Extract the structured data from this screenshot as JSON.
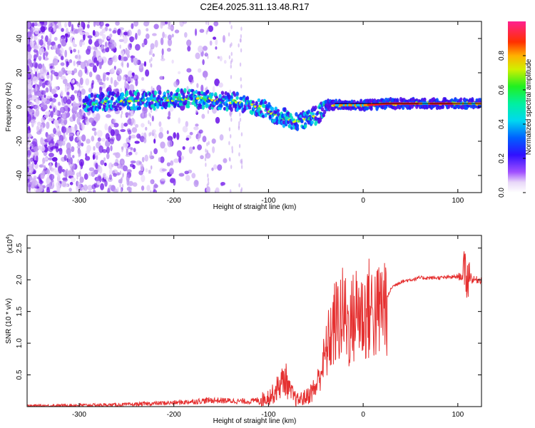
{
  "title": "C2E4.2025.311.13.48.R17",
  "colors": {
    "snr_line": "#e53030",
    "frame": "#000000",
    "ridge_core": "#ff2020"
  },
  "chart_data": [
    {
      "type": "heatmap",
      "title": "C2E4.2025.311.13.48.R17",
      "xlabel": "Height of straight line (km)",
      "ylabel": "Frequency (Hz)",
      "xlim": [
        -355,
        125
      ],
      "ylim": [
        -50,
        50
      ],
      "xticks": [
        -300,
        -200,
        -100,
        0,
        100
      ],
      "xtick_labels": [
        "-300",
        "-200",
        "-100",
        "0",
        "100"
      ],
      "yticks": [
        -40,
        -20,
        0,
        20,
        40
      ],
      "ytick_labels": [
        "-40",
        "-20",
        "0",
        "20",
        "40"
      ],
      "colorbar": {
        "label": "Normalized spectral amplitude",
        "range": [
          0,
          1
        ],
        "ticks": [
          0.0,
          0.2,
          0.4,
          0.6,
          0.8
        ],
        "tick_labels": [
          "0.0",
          "0.2",
          "0.4",
          "0.6",
          "0.8"
        ],
        "colormap": "rainbow (violet → blue → cyan → green → yellow → red → magenta)"
      },
      "ridge": {
        "x": [
          -290,
          -250,
          -220,
          -190,
          -160,
          -130,
          -110,
          -90,
          -75,
          -60,
          -45,
          -40,
          -30,
          -20,
          0,
          25,
          50,
          80,
          100,
          125
        ],
        "frequency": [
          2,
          4,
          4,
          5,
          4,
          3,
          0,
          -5,
          -8,
          -8,
          -3,
          1,
          1,
          1,
          1,
          2,
          2,
          2,
          2,
          2
        ]
      }
    },
    {
      "type": "line",
      "xlabel": "Height of straight line (km)",
      "ylabel": "SNR (10 * v/v)",
      "y_multiplier_label": "(x10",
      "y_multiplier_exponent": "4",
      "y_multiplier_close": ")",
      "xlim": [
        -355,
        125
      ],
      "ylim": [
        0,
        2.7
      ],
      "xticks": [
        -300,
        -200,
        -100,
        0,
        100
      ],
      "xtick_labels": [
        "-300",
        "-200",
        "-100",
        "0",
        "100"
      ],
      "yticks": [
        0.5,
        1.0,
        1.5,
        2.0,
        2.5
      ],
      "ytick_labels": [
        "0.5",
        "1.0",
        "1.5",
        "2.0",
        "2.5"
      ],
      "series": [
        {
          "name": "SNR",
          "x": [
            -355,
            -300,
            -250,
            -220,
            -200,
            -180,
            -160,
            -140,
            -120,
            -105,
            -95,
            -88,
            -82,
            -78,
            -70,
            -60,
            -50,
            -45,
            -40,
            -35,
            -30,
            -25,
            -20,
            -15,
            -10,
            -5,
            0,
            5,
            10,
            15,
            20,
            25,
            30,
            35,
            40,
            50,
            60,
            80,
            100,
            105,
            108,
            110,
            112,
            115,
            125
          ],
          "y": [
            0.01,
            0.02,
            0.03,
            0.05,
            0.06,
            0.08,
            0.1,
            0.09,
            0.08,
            0.12,
            0.2,
            0.35,
            0.45,
            0.25,
            0.1,
            0.15,
            0.3,
            0.55,
            0.8,
            1.1,
            1.3,
            1.4,
            1.45,
            1.25,
            1.4,
            1.55,
            1.4,
            1.55,
            1.5,
            1.45,
            1.6,
            1.7,
            1.88,
            1.93,
            1.97,
            2.0,
            2.03,
            2.03,
            2.05,
            2.05,
            2.15,
            1.95,
            2.15,
            2.0,
            2.0
          ]
        }
      ]
    }
  ]
}
